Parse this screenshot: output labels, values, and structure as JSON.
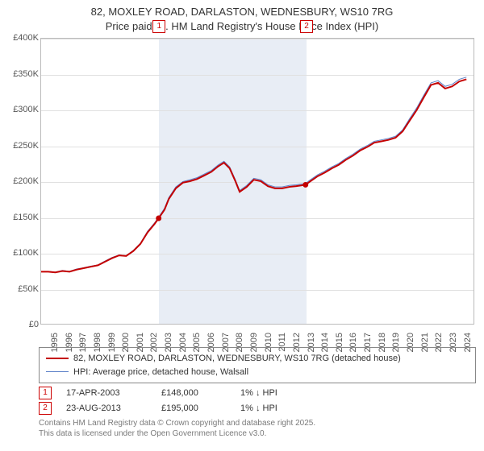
{
  "title": {
    "line1": "82, MOXLEY ROAD, DARLASTON, WEDNESBURY, WS10 7RG",
    "line2": "Price paid vs. HM Land Registry's House Price Index (HPI)"
  },
  "chart": {
    "type": "line",
    "background_color": "#ffffff",
    "grid_color": "#e0e0e0",
    "axis_color": "#bbbbbb",
    "ylim": [
      0,
      400000
    ],
    "ytick_step": 50000,
    "y_tick_labels": [
      "£0",
      "£50K",
      "£100K",
      "£150K",
      "£200K",
      "£250K",
      "£300K",
      "£350K",
      "£400K"
    ],
    "x_years": [
      1995,
      1996,
      1997,
      1998,
      1999,
      2000,
      2001,
      2002,
      2003,
      2004,
      2005,
      2006,
      2007,
      2008,
      2009,
      2010,
      2011,
      2012,
      2013,
      2014,
      2015,
      2016,
      2017,
      2018,
      2019,
      2020,
      2021,
      2022,
      2023,
      2024
    ],
    "xlim": [
      1995,
      2025.5
    ],
    "band": {
      "start": 2003.29,
      "end": 2013.65,
      "color": "#e8edf5"
    },
    "series": [
      {
        "name": "price_paid",
        "label": "82, MOXLEY ROAD, DARLASTON, WEDNESBURY, WS10 7RG (detached house)",
        "color": "#c40000",
        "line_width": 2,
        "points": [
          [
            1995.0,
            73000
          ],
          [
            1995.5,
            73000
          ],
          [
            1996.0,
            72000
          ],
          [
            1996.5,
            74000
          ],
          [
            1997.0,
            73000
          ],
          [
            1997.5,
            76000
          ],
          [
            1998.0,
            78000
          ],
          [
            1998.5,
            80000
          ],
          [
            1999.0,
            82000
          ],
          [
            1999.5,
            87000
          ],
          [
            2000.0,
            92000
          ],
          [
            2000.5,
            96000
          ],
          [
            2001.0,
            95000
          ],
          [
            2001.5,
            102000
          ],
          [
            2002.0,
            112000
          ],
          [
            2002.5,
            128000
          ],
          [
            2003.0,
            140000
          ],
          [
            2003.29,
            148000
          ],
          [
            2003.7,
            160000
          ],
          [
            2004.0,
            175000
          ],
          [
            2004.5,
            190000
          ],
          [
            2005.0,
            198000
          ],
          [
            2005.5,
            200000
          ],
          [
            2006.0,
            203000
          ],
          [
            2006.5,
            208000
          ],
          [
            2007.0,
            213000
          ],
          [
            2007.5,
            221000
          ],
          [
            2007.9,
            226000
          ],
          [
            2008.3,
            218000
          ],
          [
            2008.7,
            200000
          ],
          [
            2009.0,
            185000
          ],
          [
            2009.5,
            192000
          ],
          [
            2010.0,
            202000
          ],
          [
            2010.5,
            200000
          ],
          [
            2011.0,
            193000
          ],
          [
            2011.5,
            190000
          ],
          [
            2012.0,
            190000
          ],
          [
            2012.5,
            192000
          ],
          [
            2013.0,
            193000
          ],
          [
            2013.65,
            195000
          ],
          [
            2014.0,
            200000
          ],
          [
            2014.5,
            207000
          ],
          [
            2015.0,
            212000
          ],
          [
            2015.5,
            218000
          ],
          [
            2016.0,
            223000
          ],
          [
            2016.5,
            230000
          ],
          [
            2017.0,
            236000
          ],
          [
            2017.5,
            243000
          ],
          [
            2018.0,
            248000
          ],
          [
            2018.5,
            254000
          ],
          [
            2019.0,
            256000
          ],
          [
            2019.5,
            258000
          ],
          [
            2020.0,
            261000
          ],
          [
            2020.5,
            270000
          ],
          [
            2021.0,
            285000
          ],
          [
            2021.5,
            300000
          ],
          [
            2022.0,
            318000
          ],
          [
            2022.5,
            335000
          ],
          [
            2023.0,
            338000
          ],
          [
            2023.5,
            330000
          ],
          [
            2024.0,
            333000
          ],
          [
            2024.5,
            340000
          ],
          [
            2025.0,
            343000
          ]
        ]
      },
      {
        "name": "hpi",
        "label": "HPI: Average price, detached house, Walsall",
        "color": "#5b7fc7",
        "line_width": 1,
        "points": [
          [
            1995.0,
            73000
          ],
          [
            1995.5,
            73500
          ],
          [
            1996.0,
            72500
          ],
          [
            1996.5,
            74800
          ],
          [
            1997.0,
            73500
          ],
          [
            1997.5,
            76800
          ],
          [
            1998.0,
            78500
          ],
          [
            1998.5,
            80800
          ],
          [
            1999.0,
            82500
          ],
          [
            1999.5,
            88000
          ],
          [
            2000.0,
            93000
          ],
          [
            2000.5,
            96500
          ],
          [
            2001.0,
            95500
          ],
          [
            2001.5,
            103000
          ],
          [
            2002.0,
            113000
          ],
          [
            2002.5,
            129500
          ],
          [
            2003.0,
            141500
          ],
          [
            2003.29,
            149500
          ],
          [
            2003.7,
            162000
          ],
          [
            2004.0,
            177000
          ],
          [
            2004.5,
            192000
          ],
          [
            2005.0,
            199500
          ],
          [
            2005.5,
            202000
          ],
          [
            2006.0,
            205000
          ],
          [
            2006.5,
            210000
          ],
          [
            2007.0,
            215000
          ],
          [
            2007.5,
            223000
          ],
          [
            2007.9,
            228000
          ],
          [
            2008.3,
            220000
          ],
          [
            2008.7,
            202000
          ],
          [
            2009.0,
            187000
          ],
          [
            2009.5,
            194000
          ],
          [
            2010.0,
            204000
          ],
          [
            2010.5,
            202000
          ],
          [
            2011.0,
            195000
          ],
          [
            2011.5,
            192000
          ],
          [
            2012.0,
            192000
          ],
          [
            2012.5,
            194000
          ],
          [
            2013.0,
            195000
          ],
          [
            2013.65,
            197000
          ],
          [
            2014.0,
            202000
          ],
          [
            2014.5,
            209000
          ],
          [
            2015.0,
            214000
          ],
          [
            2015.5,
            220000
          ],
          [
            2016.0,
            225000
          ],
          [
            2016.5,
            232000
          ],
          [
            2017.0,
            238000
          ],
          [
            2017.5,
            245000
          ],
          [
            2018.0,
            250000
          ],
          [
            2018.5,
            256000
          ],
          [
            2019.0,
            258000
          ],
          [
            2019.5,
            260000
          ],
          [
            2020.0,
            263000
          ],
          [
            2020.5,
            272000
          ],
          [
            2021.0,
            288000
          ],
          [
            2021.5,
            303000
          ],
          [
            2022.0,
            321000
          ],
          [
            2022.5,
            338000
          ],
          [
            2023.0,
            341000
          ],
          [
            2023.5,
            333000
          ],
          [
            2024.0,
            336000
          ],
          [
            2024.5,
            343000
          ],
          [
            2025.0,
            346000
          ]
        ]
      }
    ],
    "sale_markers": [
      {
        "n": "1",
        "x": 2003.29,
        "y": 148000,
        "marker_y_offset": -23
      },
      {
        "n": "2",
        "x": 2013.65,
        "y": 195000,
        "marker_y_offset": -23
      }
    ],
    "sale_dot_color": "#c40000",
    "marker_border_color": "#c40000",
    "label_fontsize": 11
  },
  "legend": {
    "rows": [
      {
        "color": "#c40000",
        "width": 2,
        "label": "82, MOXLEY ROAD, DARLASTON, WEDNESBURY, WS10 7RG (detached house)"
      },
      {
        "color": "#5b7fc7",
        "width": 1,
        "label": "HPI: Average price, detached house, Walsall"
      }
    ]
  },
  "sales": [
    {
      "n": "1",
      "date": "17-APR-2003",
      "price": "£148,000",
      "delta": "1% ↓ HPI"
    },
    {
      "n": "2",
      "date": "23-AUG-2013",
      "price": "£195,000",
      "delta": "1% ↓ HPI"
    }
  ],
  "footer": {
    "line1": "Contains HM Land Registry data © Crown copyright and database right 2025.",
    "line2": "This data is licensed under the Open Government Licence v3.0."
  }
}
